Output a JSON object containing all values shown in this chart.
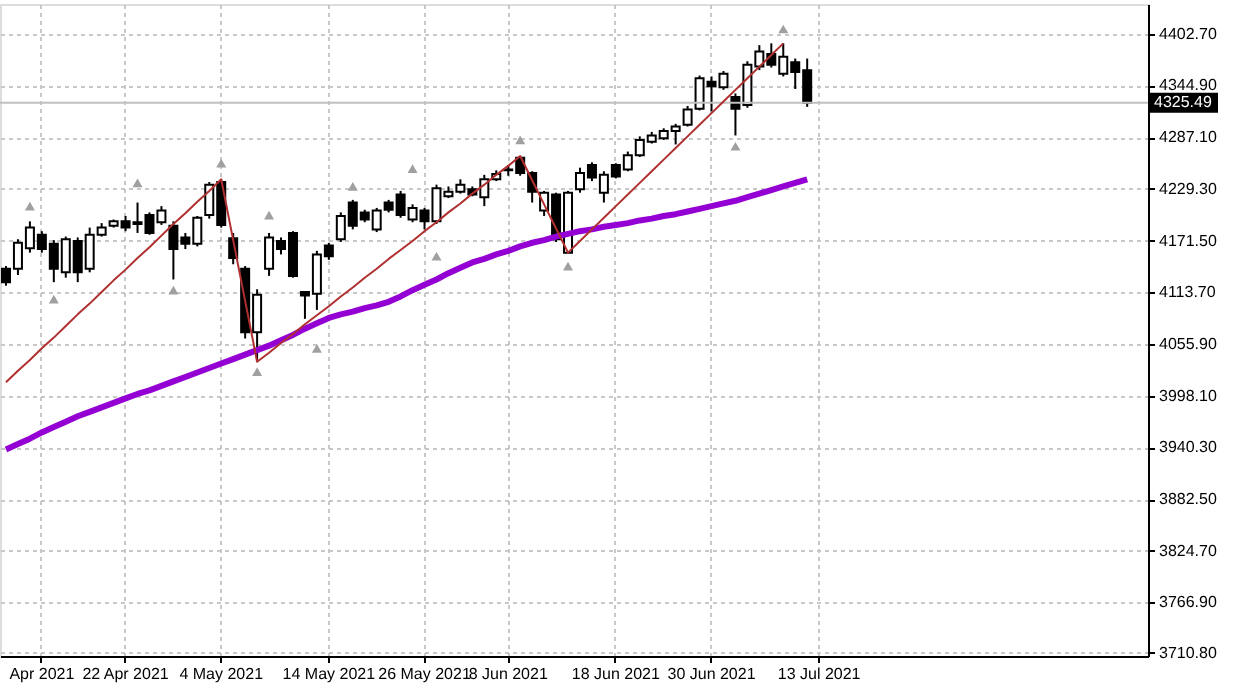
{
  "chart_data": {
    "type": "candlestick",
    "categories": [
      null,
      null,
      null,
      "Apr 2021",
      null,
      null,
      null,
      null,
      null,
      null,
      "22 Apr 2021",
      null,
      null,
      null,
      null,
      null,
      null,
      null,
      "4 May 2021",
      null,
      null,
      null,
      null,
      null,
      null,
      null,
      null,
      "14 May 2021",
      null,
      null,
      null,
      null,
      null,
      null,
      null,
      "26 May 2021",
      null,
      null,
      null,
      null,
      null,
      null,
      "8 Jun 2021",
      null,
      null,
      null,
      null,
      null,
      null,
      null,
      null,
      "18 Jun 2021",
      null,
      null,
      null,
      null,
      null,
      null,
      null,
      "30 Jun 2021",
      null,
      null,
      null,
      null,
      null,
      null,
      null,
      null,
      "13 Jul 2021",
      null,
      null,
      null,
      null,
      null,
      null,
      null,
      null,
      null,
      null,
      null,
      null,
      null,
      null,
      null,
      null,
      null,
      null,
      null,
      null,
      null,
      null,
      null,
      null,
      null,
      null,
      null
    ],
    "ohlc": [
      [
        4140,
        4143,
        4121,
        4125
      ],
      [
        4140,
        4173,
        4133,
        4169
      ],
      [
        4163,
        4193,
        4158,
        4186
      ],
      [
        4178,
        4182,
        4158,
        4162
      ],
      [
        4168,
        4172,
        4125,
        4140
      ],
      [
        4136,
        4176,
        4130,
        4173
      ],
      [
        4171,
        4175,
        4125,
        4136
      ],
      [
        4140,
        4186,
        4136,
        4178
      ],
      [
        4178,
        4191,
        4176,
        4186
      ],
      [
        4188,
        4195,
        4186,
        4193
      ],
      [
        4193,
        4199,
        4182,
        4186
      ],
      [
        4190,
        4214,
        4180,
        4192
      ],
      [
        4200,
        4203,
        4178,
        4180
      ],
      [
        4192,
        4210,
        4189,
        4205
      ],
      [
        4188,
        4193,
        4128,
        4162
      ],
      [
        4175,
        4180,
        4162,
        4168
      ],
      [
        4168,
        4199,
        4165,
        4197
      ],
      [
        4200,
        4237,
        4196,
        4234
      ],
      [
        4237,
        4240,
        4186,
        4189
      ],
      [
        4174,
        4180,
        4145,
        4152
      ],
      [
        4140,
        4143,
        4062,
        4069
      ],
      [
        4069,
        4117,
        4036,
        4111
      ],
      [
        4140,
        4180,
        4132,
        4175
      ],
      [
        4171,
        4175,
        4156,
        4162
      ],
      [
        4180,
        4182,
        4130,
        4132
      ],
      [
        4114,
        4114,
        4084,
        4110
      ],
      [
        4112,
        4160,
        4094,
        4156
      ],
      [
        4166,
        4169,
        4150,
        4154
      ],
      [
        4173,
        4203,
        4170,
        4199
      ],
      [
        4214,
        4217,
        4184,
        4188
      ],
      [
        4203,
        4206,
        4192,
        4195
      ],
      [
        4184,
        4208,
        4181,
        4205
      ],
      [
        4214,
        4217,
        4203,
        4206
      ],
      [
        4223,
        4227,
        4197,
        4200
      ],
      [
        4195,
        4212,
        4192,
        4208
      ],
      [
        4205,
        4208,
        4184,
        4193
      ],
      [
        4193,
        4234,
        4190,
        4230
      ],
      [
        4221,
        4232,
        4219,
        4226
      ],
      [
        4226,
        4240,
        4224,
        4234
      ],
      [
        4229,
        4232,
        4221,
        4223
      ],
      [
        4220,
        4245,
        4210,
        4240
      ],
      [
        4240,
        4250,
        4238,
        4246
      ],
      [
        4250,
        4256,
        4244,
        4251
      ],
      [
        4264,
        4266,
        4244,
        4247
      ],
      [
        4247,
        4249,
        4214,
        4226
      ],
      [
        4205,
        4227,
        4199,
        4225
      ],
      [
        4223,
        4225,
        4170,
        4173
      ],
      [
        4158,
        4227,
        4158,
        4225
      ],
      [
        4229,
        4253,
        4225,
        4247
      ],
      [
        4256,
        4259,
        4238,
        4242
      ],
      [
        4225,
        4249,
        4214,
        4245
      ],
      [
        4256,
        4258,
        4241,
        4243
      ],
      [
        4251,
        4271,
        4249,
        4267
      ],
      [
        4267,
        4288,
        4265,
        4284
      ],
      [
        4282,
        4293,
        4280,
        4289
      ],
      [
        4286,
        4297,
        4284,
        4294
      ],
      [
        4294,
        4302,
        4279,
        4299
      ],
      [
        4301,
        4322,
        4299,
        4318
      ],
      [
        4319,
        4356,
        4317,
        4353
      ],
      [
        4349,
        4355,
        4316,
        4344
      ],
      [
        4343,
        4361,
        4340,
        4358
      ],
      [
        4332,
        4336,
        4289,
        4319
      ],
      [
        4323,
        4372,
        4320,
        4368
      ],
      [
        4366,
        4390,
        4362,
        4383
      ],
      [
        4380,
        4392,
        4365,
        4368
      ],
      [
        4358,
        4392,
        4355,
        4377
      ],
      [
        4371,
        4375,
        4341,
        4360
      ],
      [
        4362,
        4375,
        4321,
        4325.49
      ],
      null,
      null,
      null,
      null,
      null,
      null,
      null,
      null,
      null,
      null,
      null,
      null,
      null,
      null,
      null,
      null,
      null,
      null,
      null,
      null,
      null,
      null,
      null,
      null,
      null,
      null,
      null,
      null
    ],
    "ylim": [
      3707,
      4436
    ],
    "yticks": [
      {
        "value": 3710.8,
        "label": "3710.80"
      },
      {
        "value": 3766.9,
        "label": "3766.90"
      },
      {
        "value": 3824.7,
        "label": "3824.70"
      },
      {
        "value": 3882.5,
        "label": "3882.50"
      },
      {
        "value": 3940.3,
        "label": "3940.30"
      },
      {
        "value": 3998.1,
        "label": "3998.10"
      },
      {
        "value": 4055.9,
        "label": "4055.90"
      },
      {
        "value": 4113.7,
        "label": "4113.70"
      },
      {
        "value": 4171.5,
        "label": "4171.50"
      },
      {
        "value": 4229.3,
        "label": "4229.30"
      },
      {
        "value": 4287.1,
        "label": "4287.10"
      },
      {
        "value": 4344.9,
        "label": "4344.90"
      },
      {
        "value": 4402.7,
        "label": "4402.70"
      }
    ],
    "grid": true,
    "ref_lines": [
      {
        "axis": "y",
        "value": 4325.49,
        "label": "4325.49",
        "color": "#c0c0c0"
      }
    ],
    "series": [
      {
        "type": "line",
        "color": "#9400d3",
        "values": [
          3938,
          3944,
          3950,
          3957,
          3963,
          3969,
          3975,
          3980,
          3985,
          3990,
          3995,
          4000,
          4004,
          4009,
          4014,
          4019,
          4024,
          4029,
          4034,
          4039,
          4044,
          4049,
          4054,
          4060,
          4066,
          4073,
          4079,
          4085,
          4089,
          4092,
          4096,
          4099,
          4103,
          4109,
          4116,
          4122,
          4128,
          4135,
          4141,
          4147,
          4151,
          4156,
          4160,
          4165,
          4169,
          4172,
          4176,
          4179,
          4182,
          4184,
          4187,
          4189,
          4191,
          4194,
          4196,
          4199,
          4201,
          4204,
          4207,
          4210,
          4213,
          4216,
          4220,
          4224,
          4228,
          4232,
          4236,
          4240,
          null,
          null,
          null,
          null,
          null,
          null,
          null,
          null,
          null,
          null,
          null,
          null,
          null,
          null,
          null,
          null,
          null,
          null,
          null,
          null,
          null,
          null,
          null,
          null,
          null,
          null,
          null,
          null
        ]
      },
      {
        "type": "line",
        "color": "#b03030",
        "values": [
          4013,
          4026,
          4038,
          4051,
          4063,
          4076,
          4089,
          4101,
          4114,
          4127,
          4139,
          4152,
          4164,
          4177,
          4190,
          4202,
          4215,
          4227,
          4240,
          4172,
          4104,
          4036,
          4046,
          4057,
          4067,
          4078,
          4088,
          4098,
          4109,
          4119,
          4130,
          4140,
          4151,
          4161,
          4171,
          4182,
          4192,
          4203,
          4213,
          4224,
          4234,
          4245,
          4255,
          4266,
          4239,
          4212,
          4185,
          4158,
          4171,
          4184,
          4197,
          4210,
          4223,
          4236,
          4249,
          4262,
          4275,
          4288,
          4301,
          4314,
          4327,
          4340,
          4353,
          4366,
          4379,
          4392,
          null,
          null,
          null,
          null,
          null,
          null,
          null,
          null,
          null,
          null,
          null,
          null,
          null,
          null,
          null,
          null,
          null,
          null,
          null,
          null,
          null,
          null,
          null,
          null,
          null,
          null,
          null,
          null,
          null,
          null
        ]
      },
      {
        "type": "scatter",
        "marker": "triangle",
        "color": "#a0a0a0",
        "values": [
          null,
          null,
          4210,
          null,
          null,
          null,
          null,
          null,
          null,
          null,
          null,
          4236,
          null,
          null,
          null,
          null,
          null,
          null,
          4258,
          null,
          null,
          null,
          4200,
          null,
          null,
          null,
          null,
          null,
          null,
          4232,
          null,
          null,
          null,
          null,
          4252,
          null,
          null,
          null,
          null,
          null,
          null,
          null,
          null,
          4284,
          null,
          null,
          null,
          null,
          null,
          null,
          null,
          null,
          null,
          null,
          null,
          null,
          null,
          null,
          null,
          null,
          null,
          null,
          null,
          null,
          null,
          4408,
          null,
          null,
          null,
          null,
          null,
          null,
          null,
          null,
          null,
          null,
          null,
          null,
          null,
          null,
          null,
          null,
          null,
          null,
          null,
          null,
          null,
          null,
          null,
          null,
          null,
          null,
          null,
          null,
          null,
          null
        ]
      },
      {
        "type": "scatter",
        "marker": "triangle",
        "color": "#a0a0a0",
        "values": [
          null,
          null,
          null,
          null,
          4106,
          null,
          null,
          null,
          null,
          null,
          null,
          null,
          null,
          null,
          4116,
          null,
          null,
          null,
          null,
          null,
          null,
          4025,
          null,
          null,
          null,
          null,
          4051,
          null,
          null,
          null,
          null,
          null,
          null,
          null,
          null,
          null,
          4154,
          null,
          null,
          null,
          null,
          null,
          null,
          null,
          null,
          null,
          null,
          4143,
          null,
          null,
          null,
          null,
          null,
          null,
          null,
          null,
          null,
          null,
          null,
          null,
          null,
          4277,
          null,
          null,
          null,
          null,
          null,
          null,
          null,
          null,
          null,
          null,
          null,
          null,
          null,
          null,
          null,
          null,
          null,
          null,
          null,
          null,
          null,
          null,
          null,
          null,
          null,
          null,
          null,
          null,
          null,
          null,
          null,
          null,
          null,
          null
        ]
      }
    ]
  }
}
